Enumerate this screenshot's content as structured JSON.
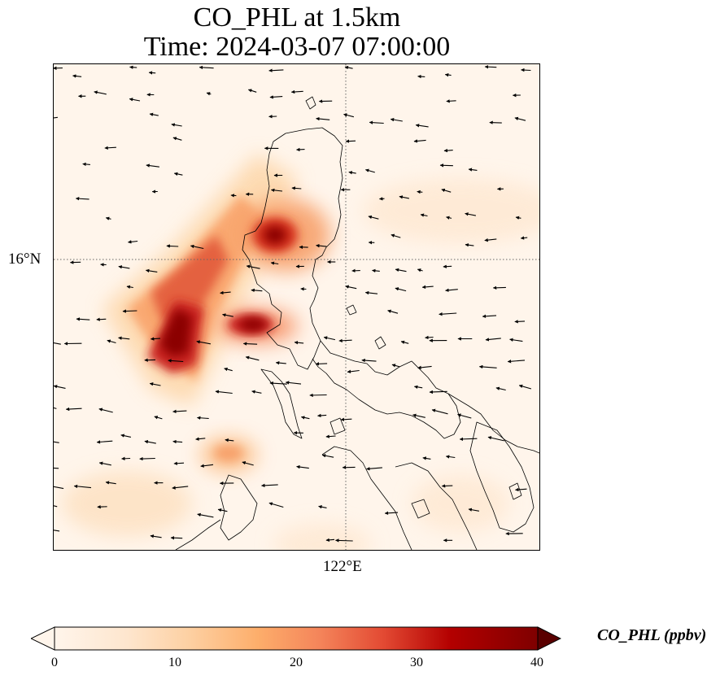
{
  "title": {
    "line1": "CO_PHL at 1.5km",
    "line2": "Time: 2024-03-07 07:00:00"
  },
  "axes": {
    "lat_tick_label": "16°N",
    "lon_tick_label": "122°E"
  },
  "colorbar": {
    "label": "CO_PHL (ppbv)",
    "ticks": [
      "0",
      "10",
      "20",
      "30",
      "40"
    ],
    "min": 0,
    "max": 40,
    "extend": "both",
    "colormap": [
      "#fff5eb",
      "#fee6ce",
      "#fdd0a2",
      "#fdae6b",
      "#fd8d3c",
      "#f16913",
      "#d94801",
      "#a60000",
      "#7f0000"
    ]
  },
  "map": {
    "gridlines": "dotted",
    "coastlines": true,
    "wind_vectors": true,
    "plume_color_low": "#fdd6a8",
    "plume_color_high": "#8b0000"
  }
}
